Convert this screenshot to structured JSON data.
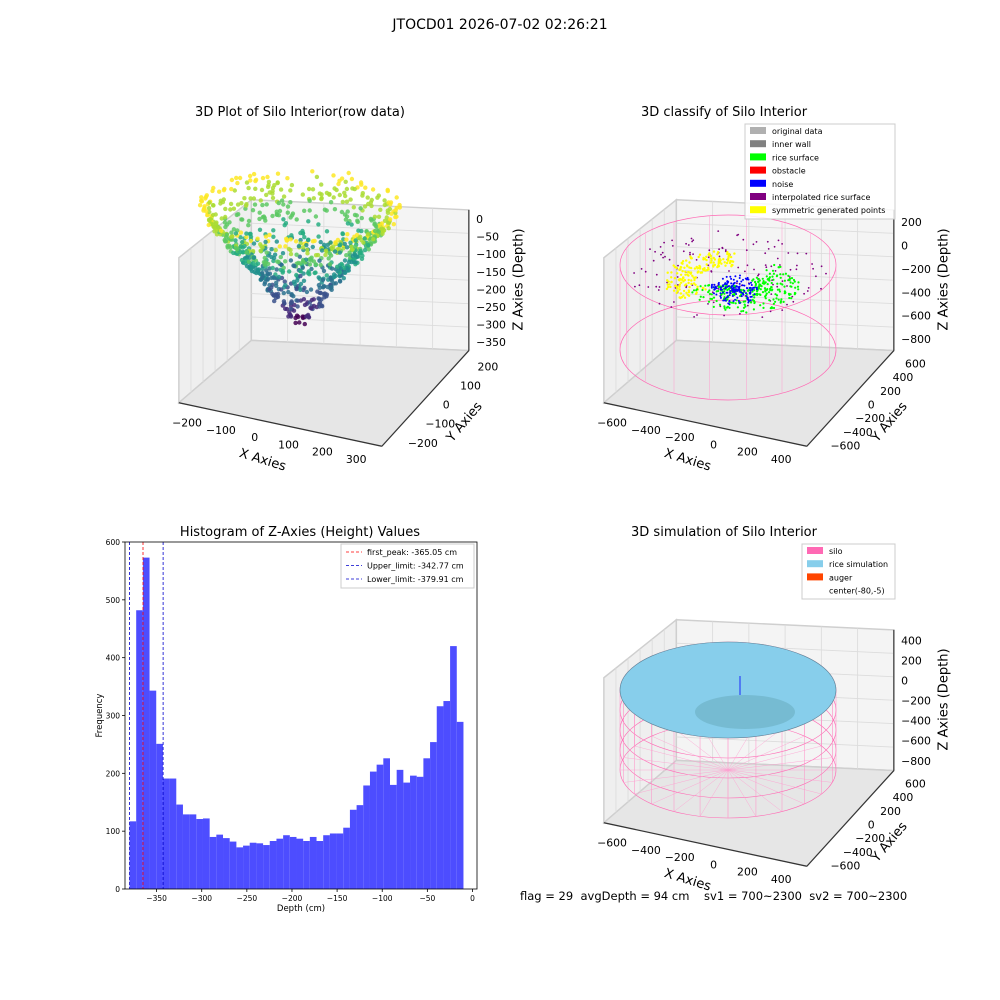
{
  "suptitle": "JTOCD01 2026-07-02 02:26:21",
  "footer": "flag = 29  avgDepth = 94 cm    sv1 = 700~2300  sv2 = 700~2300",
  "colors": {
    "hist_bar": "#4d4dff",
    "first_peak_line": "#ff0000",
    "limit_line": "#0000cc",
    "silo": "#ff69b4",
    "rice_simulation": "#87ceeb",
    "auger": "#ff4500",
    "original_data": "#b0b0b0",
    "inner_wall": "#808080",
    "rice_surface": "#00ff00",
    "obstacle": "#ff0000",
    "noise": "#0000ff",
    "interpolated_rice_surface": "#800080",
    "symmetric_generated_points": "#ffff00"
  },
  "chart_data": [
    {
      "type": "scatter",
      "title": "3D Plot of Silo Interior(row data)",
      "xlabel": "X Axies",
      "ylabel": "Y Axies",
      "zlabel": "Z Axies (Depth)",
      "xticks": [
        "−200",
        "−100",
        "0",
        "100",
        "200",
        "300"
      ],
      "yticks": [
        "−200",
        "−100",
        "0",
        "100",
        "200"
      ],
      "zticks": [
        "0",
        "−50",
        "−100",
        "−150",
        "−200",
        "−250",
        "−300",
        "−350"
      ],
      "colormap": "viridis"
    },
    {
      "type": "scatter",
      "title": "3D classify of Silo Interior",
      "xlabel": "X Axies",
      "ylabel": "Y Axies",
      "zlabel": "Z Axies (Depth)",
      "xticks": [
        "−600",
        "−400",
        "−200",
        "0",
        "200",
        "400"
      ],
      "yticks": [
        "−600",
        "−400",
        "−200",
        "0",
        "200",
        "400",
        "600"
      ],
      "zticks": [
        "200",
        "0",
        "−200",
        "−400",
        "−600",
        "−800"
      ],
      "legend": [
        "original data",
        "inner wall",
        "rice surface",
        "obstacle",
        "noise",
        "interpolated rice surface",
        "symmetric generated points"
      ],
      "legend_placement": "top-right"
    },
    {
      "type": "bar",
      "title": "Histogram of Z-Axies (Height) Values",
      "xlabel": "Depth (cm)",
      "ylabel": "Frequency",
      "xlim": [
        -385,
        5
      ],
      "ylim": [
        0,
        600
      ],
      "xticks": [
        "−350",
        "−300",
        "−250",
        "−200",
        "−150",
        "−100",
        "−50",
        "0"
      ],
      "yticks": [
        "0",
        "100",
        "200",
        "300",
        "400",
        "500",
        "600"
      ],
      "bin_start": -380,
      "bin_width": 7.4,
      "values": [
        117,
        482,
        573,
        343,
        251,
        191,
        191,
        146,
        129,
        129,
        121,
        122,
        90,
        94,
        88,
        82,
        72,
        75,
        80,
        79,
        76,
        83,
        87,
        93,
        90,
        87,
        83,
        90,
        83,
        93,
        96,
        96,
        106,
        137,
        145,
        179,
        203,
        215,
        226,
        180,
        206,
        184,
        196,
        194,
        226,
        254,
        316,
        325,
        420,
        289
      ],
      "vlines": [
        {
          "label": "first_peak: -365.05 cm",
          "x": -365.05,
          "color": "#ff0000"
        },
        {
          "label": "Upper_limit: -342.77 cm",
          "x": -342.77,
          "color": "#0000cc"
        },
        {
          "label": "Lower_limit: -379.91 cm",
          "x": -379.91,
          "color": "#0000cc"
        }
      ],
      "legend_placement": "top-right"
    },
    {
      "type": "scatter",
      "title": "3D simulation of Silo Interior",
      "xlabel": "X Axies",
      "ylabel": "Y Axies",
      "zlabel": "Z Axies (Depth)",
      "xticks": [
        "−600",
        "−400",
        "−200",
        "0",
        "200",
        "400"
      ],
      "yticks": [
        "−600",
        "−400",
        "−200",
        "0",
        "200",
        "400",
        "600"
      ],
      "zticks": [
        "400",
        "200",
        "0",
        "−200",
        "−400",
        "−600",
        "−800"
      ],
      "legend": [
        "silo",
        "rice simulation",
        "auger",
        "center(-80,-5)"
      ],
      "legend_placement": "top-right"
    }
  ]
}
